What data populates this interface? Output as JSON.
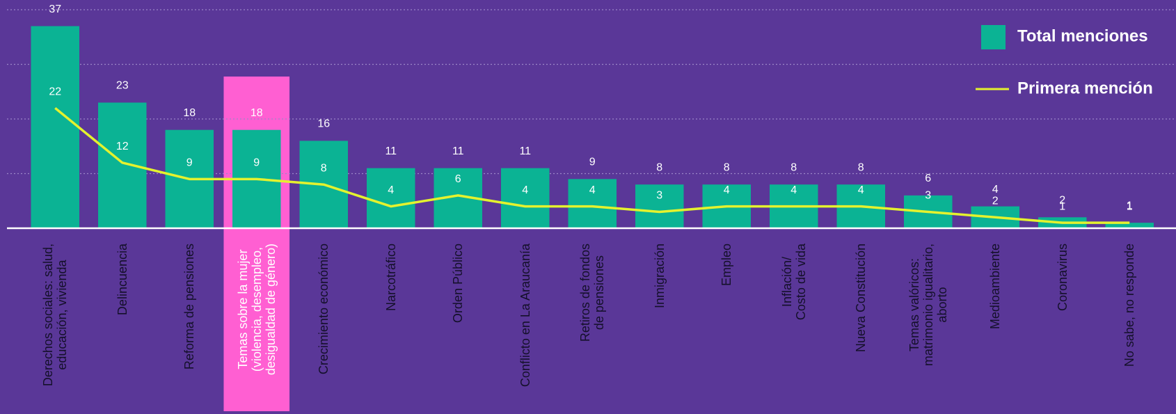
{
  "chart_data": {
    "type": "bar",
    "categories": [
      "Derechos sociales: salud,\neducación, vivienda",
      "Delincuencia",
      "Reforma de pensiones",
      "Temas sobre la mujer\n(violencia, desempleo,\ndesigualdad de género)",
      "Crecimiento económico",
      "Narcotráfico",
      "Orden Público",
      "Conflicto en La Araucanía",
      "Retiros de fondos\nde pensiones",
      "Inmigración",
      "Empleo",
      "Inflación/\nCosto de vida",
      "Nueva Constitución",
      "Temas valóricos:\nmatrimonio igualitario,\naborto",
      "Medioambiente",
      "Coronavirus",
      "No sabe, no responde"
    ],
    "series": [
      {
        "name": "Total menciones",
        "type": "bar",
        "color": "#0bb394",
        "values": [
          37,
          23,
          18,
          18,
          16,
          11,
          11,
          11,
          9,
          8,
          8,
          8,
          8,
          6,
          4,
          2,
          1
        ]
      },
      {
        "name": "Primera mención",
        "type": "line",
        "color": "#e4f22e",
        "values": [
          22,
          12,
          9,
          9,
          8,
          4,
          6,
          4,
          4,
          3,
          4,
          4,
          4,
          3,
          2,
          1,
          1
        ]
      }
    ],
    "ylim": [
      0,
      40
    ],
    "yticks": [
      10,
      20,
      30,
      40
    ],
    "grid": true,
    "legend": "top-right",
    "highlight_index": 3,
    "highlight_color": "#ff5fd2"
  }
}
